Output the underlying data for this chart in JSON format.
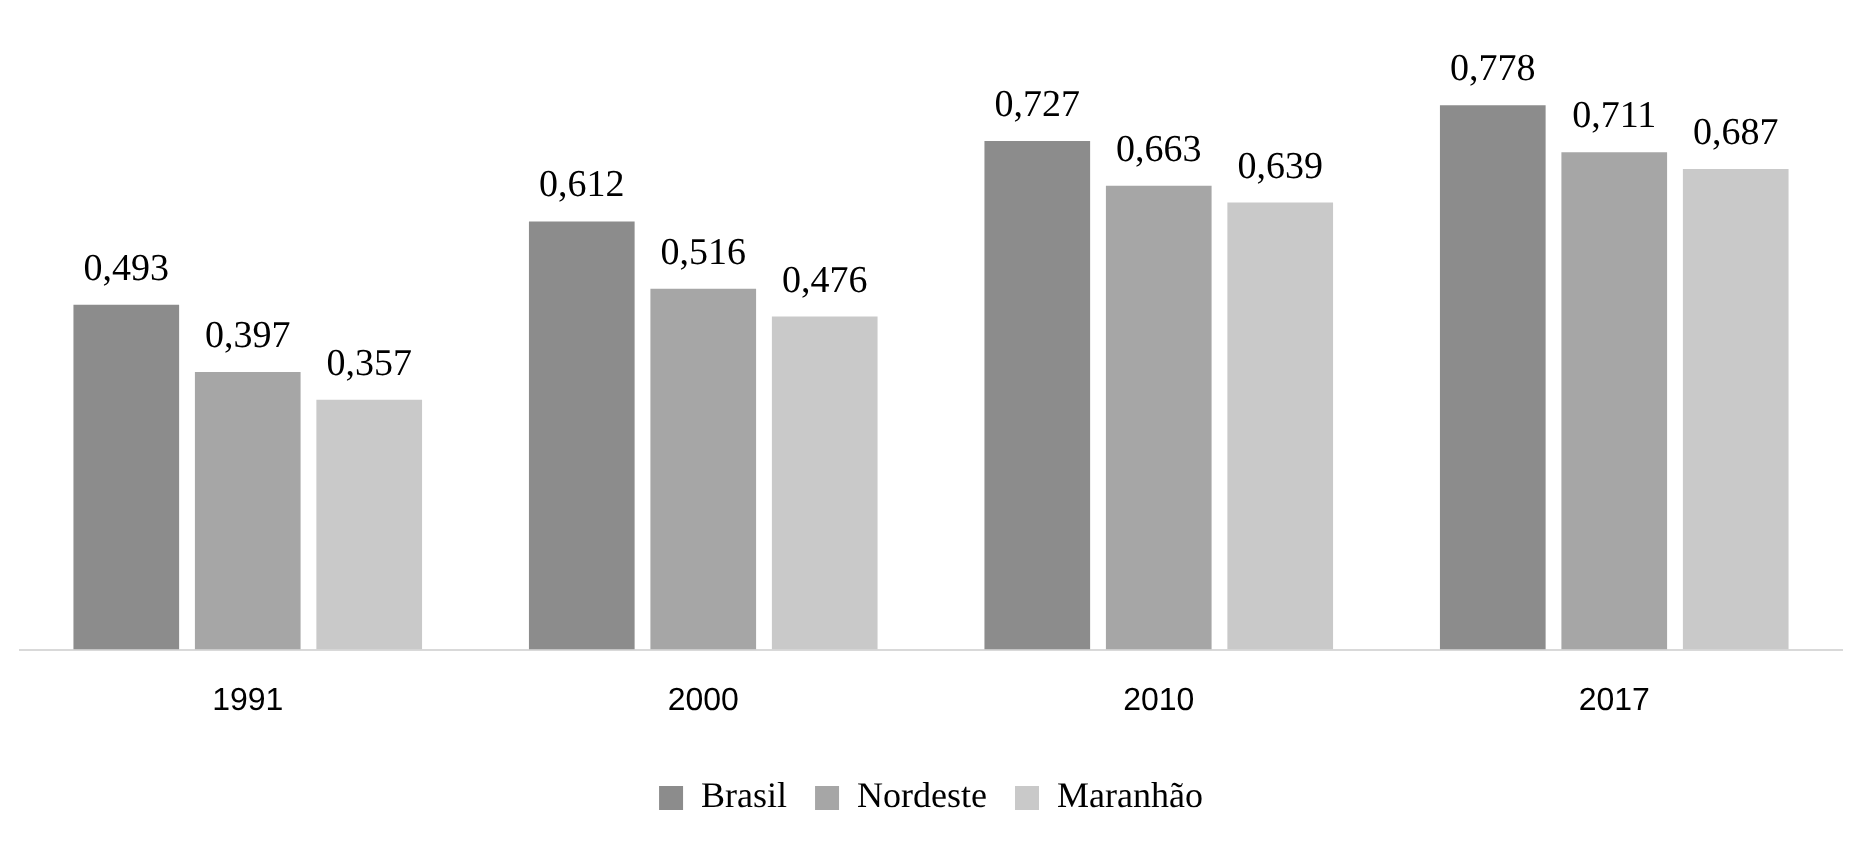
{
  "chart_data": {
    "type": "bar",
    "categories": [
      "1991",
      "2000",
      "2010",
      "2017"
    ],
    "series": [
      {
        "name": "Brasil",
        "color": "#8c8c8c",
        "values": [
          0.493,
          0.612,
          0.727,
          0.778
        ],
        "value_labels": [
          "0,493",
          "0,612",
          "0,727",
          "0,778"
        ]
      },
      {
        "name": "Nordeste",
        "color": "#a6a6a6",
        "values": [
          0.397,
          0.516,
          0.663,
          0.711
        ],
        "value_labels": [
          "0,397",
          "0,516",
          "0,663",
          "0,711"
        ]
      },
      {
        "name": "Maranhão",
        "color": "#c9c9c9",
        "values": [
          0.357,
          0.476,
          0.639,
          0.687
        ],
        "value_labels": [
          "0,357",
          "0,476",
          "0,639",
          "0,687"
        ]
      }
    ],
    "legend": "bottom"
  }
}
